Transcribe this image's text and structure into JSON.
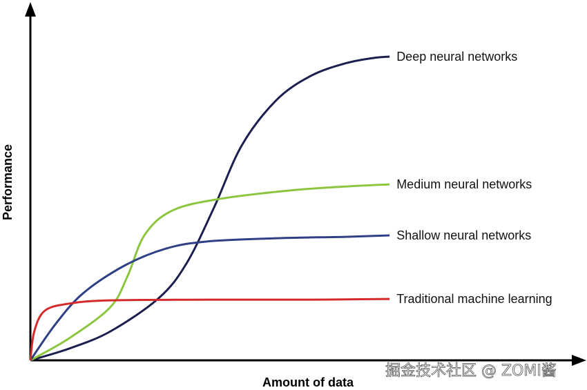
{
  "chart_data": {
    "type": "line",
    "title": "",
    "xlabel": "Amount of data",
    "ylabel": "Performance",
    "xlim": [
      0,
      100
    ],
    "ylim": [
      0,
      100
    ],
    "grid": false,
    "legend": "inline labels at line ends",
    "series": [
      {
        "name": "Deep neural networks",
        "color": "#1a1f4f",
        "x": [
          0,
          7.0,
          14.4,
          23.1,
          28.1,
          33.1,
          38.1,
          44.3,
          50.5,
          56.7,
          61.7,
          64.7
        ],
        "y": [
          0,
          3.3,
          8.1,
          17.4,
          27.1,
          42.9,
          60.3,
          72.9,
          79.7,
          83.2,
          84.7,
          85.1
        ]
      },
      {
        "name": "Medium neural networks",
        "color": "#8cc63f",
        "x": [
          0,
          7.0,
          14.4,
          17.5,
          20.6,
          25.6,
          34.3,
          46.8,
          56.7,
          64.7
        ],
        "y": [
          0,
          6.2,
          14.9,
          23.6,
          35.2,
          42.0,
          45.3,
          47.6,
          48.7,
          49.3
        ]
      },
      {
        "name": "Shallow neural networks",
        "color": "#2e3f85",
        "x": [
          0,
          4.5,
          9.5,
          16.9,
          24.4,
          31.8,
          44.3,
          56.7,
          64.7
        ],
        "y": [
          0,
          10.1,
          18.8,
          26.5,
          31.3,
          33.3,
          34.2,
          34.6,
          35.0
        ]
      },
      {
        "name": "Traditional machine learning",
        "color": "#d42a2a",
        "x": [
          0,
          0.7,
          2.6,
          7.0,
          14.4,
          31.8,
          50.5,
          64.7
        ],
        "y": [
          0,
          8.1,
          13.9,
          15.9,
          16.8,
          17.0,
          17.0,
          17.2
        ]
      }
    ]
  },
  "watermark": "掘金技术社区 @ ZOMI酱"
}
